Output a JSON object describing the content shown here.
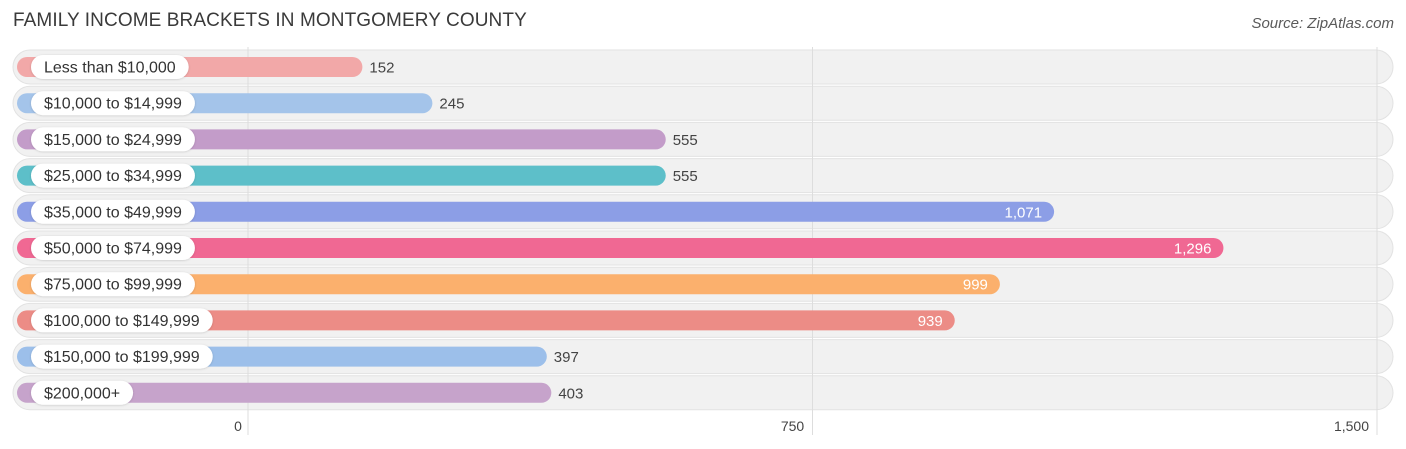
{
  "header": {
    "title": "FAMILY INCOME BRACKETS IN MONTGOMERY COUNTY",
    "source": "Source: ZipAtlas.com"
  },
  "chart_data": {
    "type": "bar",
    "orientation": "horizontal",
    "title": "FAMILY INCOME BRACKETS IN MONTGOMERY COUNTY",
    "categories": [
      "Less than $10,000",
      "$10,000 to $14,999",
      "$15,000 to $24,999",
      "$25,000 to $34,999",
      "$35,000 to $49,999",
      "$50,000 to $74,999",
      "$75,000 to $99,999",
      "$100,000 to $149,999",
      "$150,000 to $199,999",
      "$200,000+"
    ],
    "values": [
      152,
      245,
      555,
      555,
      1071,
      1296,
      999,
      939,
      397,
      403
    ],
    "value_labels": [
      "152",
      "245",
      "555",
      "555",
      "1,071",
      "1,296",
      "999",
      "939",
      "397",
      "403"
    ],
    "colors": [
      "#f2a8a8",
      "#a4c4ea",
      "#c39cc9",
      "#5dbfc9",
      "#8c9ee6",
      "#f06893",
      "#fbb06d",
      "#ec8c86",
      "#9cbfea",
      "#c6a3cb"
    ],
    "xlim": [
      0,
      1500
    ],
    "xticks": [
      0,
      750,
      1500
    ],
    "xtick_labels": [
      "0",
      "750",
      "1,500"
    ],
    "grid": true,
    "legend": "none"
  }
}
